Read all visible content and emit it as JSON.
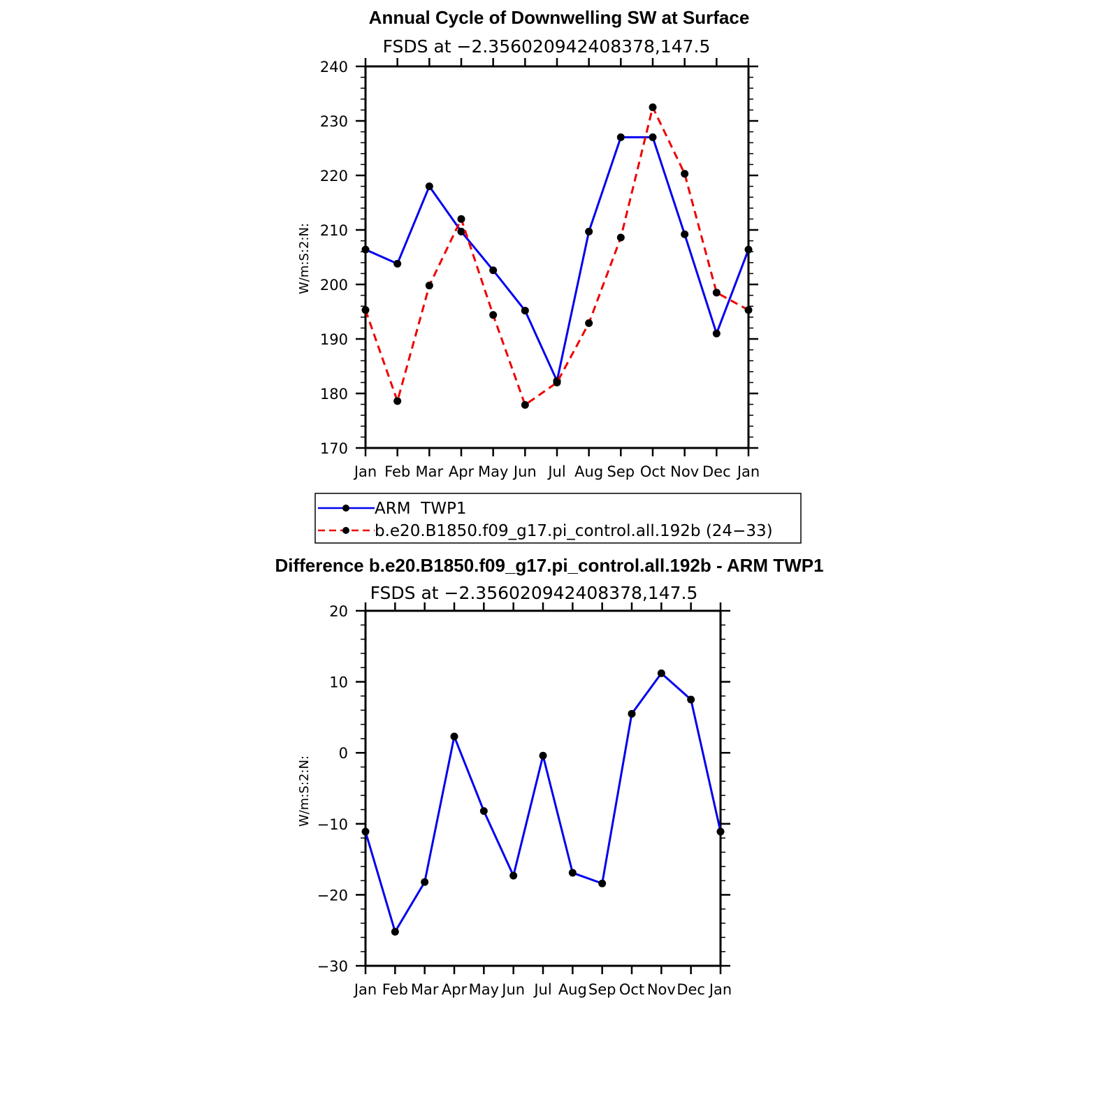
{
  "colors": {
    "obs_line": "#0000ee",
    "model_line": "#ee0000",
    "diff_line": "#0000ee",
    "axis": "#000000",
    "marker": "#000000"
  },
  "chart_data": [
    {
      "type": "line",
      "title": "Annual Cycle of Downwelling SW at Surface",
      "subtitle": "FSDS at −2.356020942408378,147.5",
      "ylabel": "W/m:S:2:N:",
      "xlabel": "",
      "ylim": [
        170,
        240
      ],
      "y_ticks": [
        170,
        180,
        190,
        200,
        210,
        220,
        230,
        240
      ],
      "y_tick_labels": [
        "170",
        "180",
        "190",
        "200",
        "210",
        "220",
        "230",
        "240"
      ],
      "categories": [
        "Jan",
        "Feb",
        "Mar",
        "Apr",
        "May",
        "Jun",
        "Jul",
        "Aug",
        "Sep",
        "Oct",
        "Nov",
        "Dec",
        "Jan"
      ],
      "series": [
        {
          "name": "ARM  TWP1",
          "style": "solid",
          "color": "#0000ee",
          "values": [
            206.4,
            203.8,
            218.0,
            209.7,
            202.6,
            195.2,
            182.3,
            209.7,
            227.0,
            227.0,
            209.2,
            191.0,
            206.4
          ]
        },
        {
          "name": "b.e20.B1850.f09_g17.pi_control.all.192b (24−33)",
          "style": "dashed",
          "color": "#ee0000",
          "values": [
            195.3,
            178.6,
            199.8,
            212.0,
            194.4,
            177.9,
            182.0,
            192.9,
            208.6,
            232.5,
            220.3,
            198.5,
            195.3
          ]
        }
      ],
      "legend": "below"
    },
    {
      "type": "line",
      "title": "Difference b.e20.B1850.f09_g17.pi_control.all.192b - ARM TWP1",
      "subtitle": "FSDS at −2.356020942408378,147.5",
      "ylabel": "W/m:S:2:N:",
      "xlabel": "",
      "ylim": [
        -30,
        20
      ],
      "y_ticks": [
        -30,
        -20,
        -10,
        0,
        10,
        20
      ],
      "y_tick_labels": [
        "−30",
        "−20",
        "−10",
        "0",
        "10",
        "20"
      ],
      "categories": [
        "Jan",
        "Feb",
        "Mar",
        "Apr",
        "May",
        "Jun",
        "Jul",
        "Aug",
        "Sep",
        "Oct",
        "Nov",
        "Dec",
        "Jan"
      ],
      "series": [
        {
          "style": "solid",
          "color": "#0000ee",
          "values": [
            -11.1,
            -25.2,
            -18.2,
            2.3,
            -8.2,
            -17.3,
            -0.4,
            -16.9,
            -18.4,
            5.5,
            11.2,
            7.5,
            -11.1
          ]
        }
      ]
    }
  ]
}
